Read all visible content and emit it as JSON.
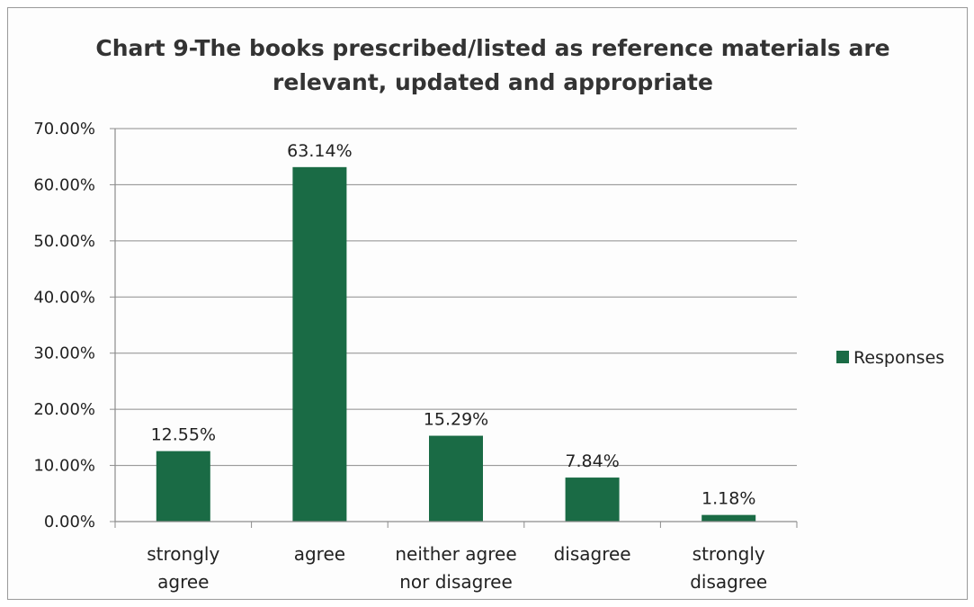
{
  "chart_data": {
    "type": "bar",
    "title_lines": [
      "Chart 9-The books prescribed/listed as reference materials are",
      "relevant, updated and appropriate"
    ],
    "categories": [
      [
        "strongly",
        "agree"
      ],
      [
        "agree"
      ],
      [
        "neither agree",
        "nor disagree"
      ],
      [
        "disagree"
      ],
      [
        "strongly",
        "disagree"
      ]
    ],
    "series": [
      {
        "name": "Responses",
        "values": [
          12.55,
          63.14,
          15.29,
          7.84,
          1.18
        ],
        "value_labels": [
          "12.55%",
          "63.14%",
          "15.29%",
          "7.84%",
          "1.18%"
        ],
        "color": "#1a6b45"
      }
    ],
    "ylim": [
      0,
      70
    ],
    "yticks": [
      0,
      10,
      20,
      30,
      40,
      50,
      60,
      70
    ],
    "ytick_labels": [
      "0.00%",
      "10.00%",
      "20.00%",
      "30.00%",
      "40.00%",
      "50.00%",
      "60.00%",
      "70.00%"
    ],
    "grid": true,
    "legend_position": "right"
  }
}
